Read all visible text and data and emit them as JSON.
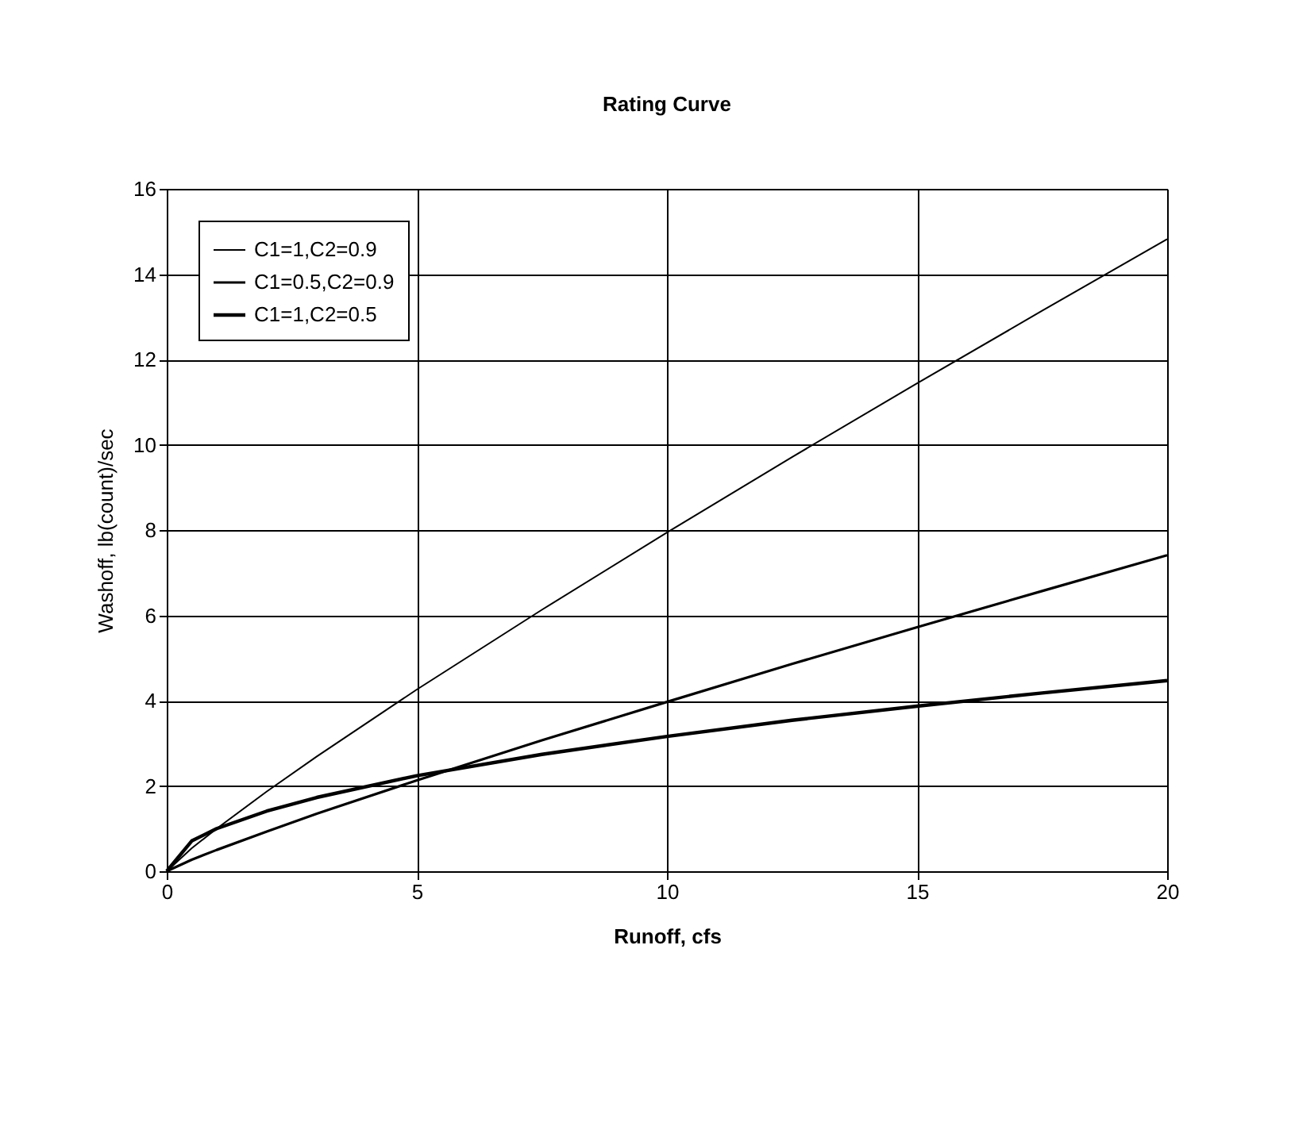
{
  "chart_data": {
    "type": "line",
    "title": "Rating Curve",
    "xlabel": "Runoff, cfs",
    "ylabel": "Washoff, lb(count)/sec",
    "x": [
      0,
      0.5,
      1,
      2,
      3,
      5,
      7.5,
      10,
      12.5,
      15,
      17.5,
      20
    ],
    "series": [
      {
        "name": "C1=1,C2=0.9",
        "color": "#000000",
        "values": [
          0,
          0.54,
          1,
          1.87,
          2.69,
          4.26,
          6.13,
          7.94,
          9.71,
          11.44,
          13.14,
          14.82
        ]
      },
      {
        "name": "C1=0.5,C2=0.9",
        "color": "#000000",
        "values": [
          0,
          0.27,
          0.5,
          0.93,
          1.35,
          2.13,
          3.07,
          3.97,
          4.86,
          5.72,
          6.57,
          7.41
        ]
      },
      {
        "name": "C1=1,C2=0.5",
        "color": "#000000",
        "values": [
          0,
          0.71,
          1,
          1.41,
          1.73,
          2.24,
          2.74,
          3.16,
          3.54,
          3.87,
          4.18,
          4.47
        ]
      }
    ],
    "xlim": [
      0,
      20
    ],
    "xticks": [
      0,
      5,
      10,
      15,
      20
    ],
    "ylim": [
      0,
      16
    ],
    "yticks": [
      0,
      2,
      4,
      6,
      8,
      10,
      12,
      14,
      16
    ],
    "grid": true,
    "legend": "top left",
    "marker": "none",
    "line_style": "solid"
  }
}
